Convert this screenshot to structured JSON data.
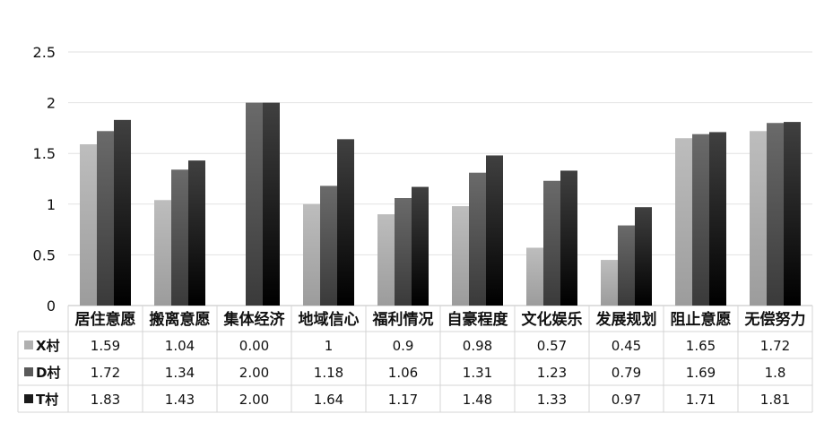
{
  "chart_data": {
    "type": "bar",
    "title": "",
    "xlabel": "",
    "ylabel": "",
    "ylim": [
      0,
      2.5
    ],
    "yticks": [
      "0",
      "0.5",
      "1",
      "1.5",
      "2",
      "2.5"
    ],
    "ytick_values": [
      0,
      0.5,
      1,
      1.5,
      2,
      2.5
    ],
    "grid": true,
    "legend": "data-table-left",
    "categories": [
      "居住意愿",
      "搬离意愿",
      "集体经济",
      "地域信心",
      "福利情况",
      "自豪程度",
      "文化娱乐",
      "发展规划",
      "阻止意愿",
      "无偿努力"
    ],
    "series": [
      {
        "name": "X村",
        "color": "#b0b0b0",
        "values": [
          1.59,
          1.04,
          0.0,
          1,
          0.9,
          0.98,
          0.57,
          0.45,
          1.65,
          1.72
        ],
        "labels": [
          "1.59",
          "1.04",
          "0.00",
          "1",
          "0.9",
          "0.98",
          "0.57",
          "0.45",
          "1.65",
          "1.72"
        ]
      },
      {
        "name": "D村",
        "color": "#5a5a5a",
        "values": [
          1.72,
          1.34,
          2.0,
          1.18,
          1.06,
          1.31,
          1.23,
          0.79,
          1.69,
          1.8
        ],
        "labels": [
          "1.72",
          "1.34",
          "2.00",
          "1.18",
          "1.06",
          "1.31",
          "1.23",
          "0.79",
          "1.69",
          "1.8"
        ]
      },
      {
        "name": "T村",
        "color": "#1a1a1a",
        "values": [
          1.83,
          1.43,
          2.0,
          1.64,
          1.17,
          1.48,
          1.33,
          0.97,
          1.71,
          1.81
        ],
        "labels": [
          "1.83",
          "1.43",
          "2.00",
          "1.64",
          "1.17",
          "1.48",
          "1.33",
          "0.97",
          "1.71",
          "1.81"
        ]
      }
    ]
  }
}
